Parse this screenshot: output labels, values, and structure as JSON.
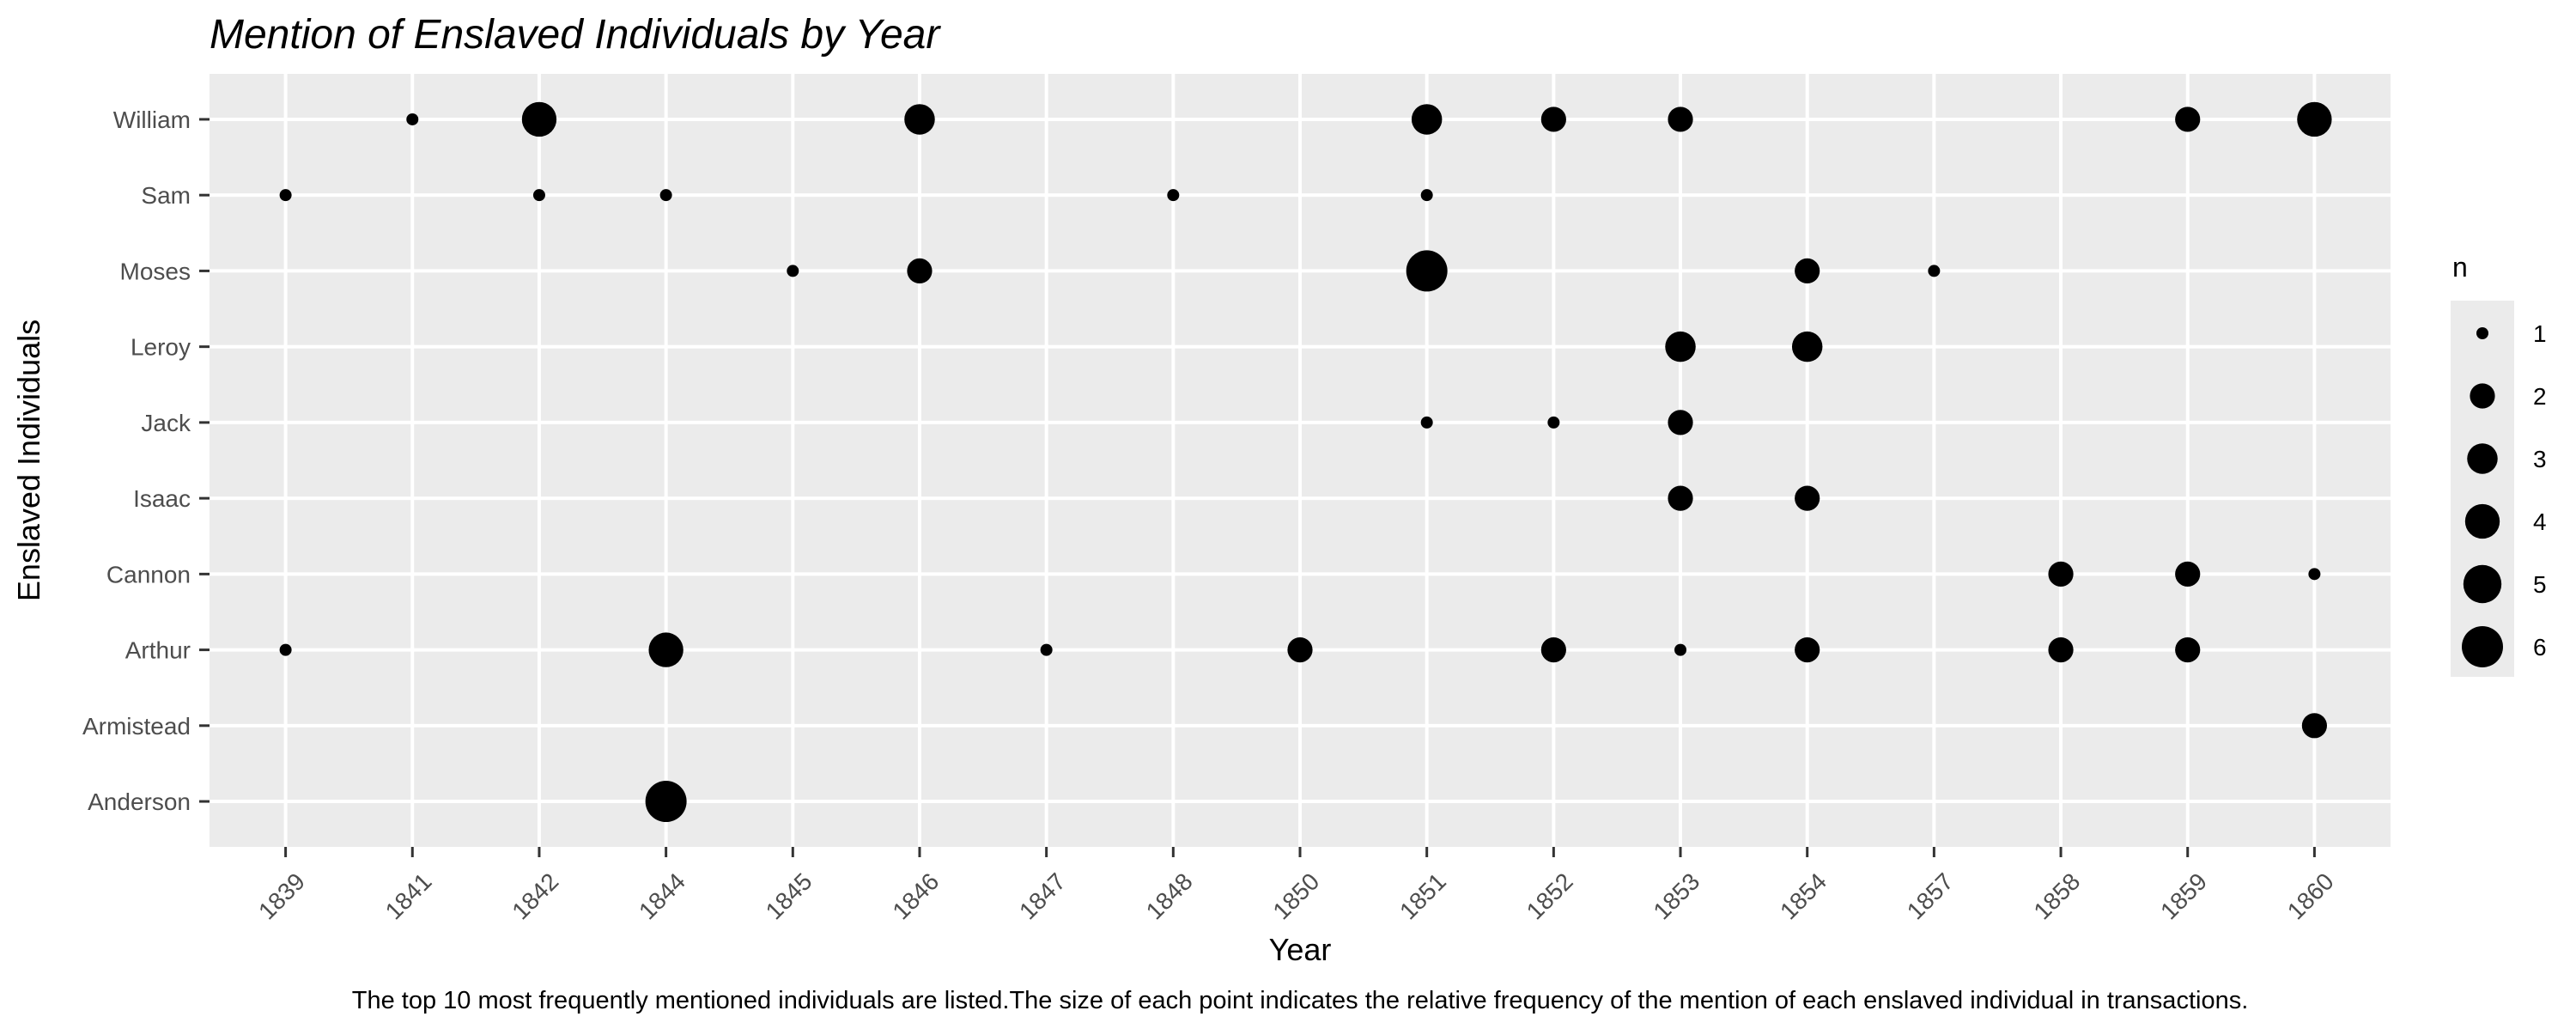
{
  "chart_data": {
    "type": "scatter",
    "title": "Mention of Enslaved Individuals by Year",
    "xlabel": "Year",
    "ylabel": "Enslaved Individuals",
    "caption": "The top 10 most frequently mentioned individuals are listed.The size of each point indicates the relative frequency of the mention of each enslaved individual in transactions.",
    "x_categories": [
      "1839",
      "1841",
      "1842",
      "1844",
      "1845",
      "1846",
      "1847",
      "1848",
      "1850",
      "1851",
      "1852",
      "1853",
      "1854",
      "1857",
      "1858",
      "1859",
      "1860"
    ],
    "y_categories": [
      "William",
      "Sam",
      "Moses",
      "Leroy",
      "Jack",
      "Isaac",
      "Cannon",
      "Arthur",
      "Armistead",
      "Anderson"
    ],
    "size_legend": {
      "title": "n",
      "values": [
        1,
        2,
        3,
        4,
        5,
        6
      ],
      "labels": [
        "1",
        "2",
        "3",
        "4",
        "5",
        "6"
      ]
    },
    "grid": true,
    "legend_position": "right",
    "points": [
      {
        "x": "1841",
        "y": "William",
        "n": 1
      },
      {
        "x": "1842",
        "y": "William",
        "n": 4
      },
      {
        "x": "1846",
        "y": "William",
        "n": 3
      },
      {
        "x": "1851",
        "y": "William",
        "n": 3
      },
      {
        "x": "1852",
        "y": "William",
        "n": 2
      },
      {
        "x": "1853",
        "y": "William",
        "n": 2
      },
      {
        "x": "1859",
        "y": "William",
        "n": 2
      },
      {
        "x": "1860",
        "y": "William",
        "n": 4
      },
      {
        "x": "1839",
        "y": "Sam",
        "n": 1
      },
      {
        "x": "1842",
        "y": "Sam",
        "n": 1
      },
      {
        "x": "1844",
        "y": "Sam",
        "n": 1
      },
      {
        "x": "1848",
        "y": "Sam",
        "n": 1
      },
      {
        "x": "1851",
        "y": "Sam",
        "n": 1
      },
      {
        "x": "1845",
        "y": "Moses",
        "n": 1
      },
      {
        "x": "1846",
        "y": "Moses",
        "n": 2
      },
      {
        "x": "1851",
        "y": "Moses",
        "n": 6
      },
      {
        "x": "1854",
        "y": "Moses",
        "n": 2
      },
      {
        "x": "1857",
        "y": "Moses",
        "n": 1
      },
      {
        "x": "1853",
        "y": "Leroy",
        "n": 3
      },
      {
        "x": "1854",
        "y": "Leroy",
        "n": 3
      },
      {
        "x": "1851",
        "y": "Jack",
        "n": 1
      },
      {
        "x": "1852",
        "y": "Jack",
        "n": 1
      },
      {
        "x": "1853",
        "y": "Jack",
        "n": 2
      },
      {
        "x": "1853",
        "y": "Isaac",
        "n": 2
      },
      {
        "x": "1854",
        "y": "Isaac",
        "n": 2
      },
      {
        "x": "1858",
        "y": "Cannon",
        "n": 2
      },
      {
        "x": "1859",
        "y": "Cannon",
        "n": 2
      },
      {
        "x": "1860",
        "y": "Cannon",
        "n": 1
      },
      {
        "x": "1839",
        "y": "Arthur",
        "n": 1
      },
      {
        "x": "1844",
        "y": "Arthur",
        "n": 4
      },
      {
        "x": "1847",
        "y": "Arthur",
        "n": 1
      },
      {
        "x": "1850",
        "y": "Arthur",
        "n": 2
      },
      {
        "x": "1852",
        "y": "Arthur",
        "n": 2
      },
      {
        "x": "1853",
        "y": "Arthur",
        "n": 1
      },
      {
        "x": "1854",
        "y": "Arthur",
        "n": 2
      },
      {
        "x": "1858",
        "y": "Arthur",
        "n": 2
      },
      {
        "x": "1859",
        "y": "Arthur",
        "n": 2
      },
      {
        "x": "1860",
        "y": "Armistead",
        "n": 2
      },
      {
        "x": "1844",
        "y": "Anderson",
        "n": 6
      }
    ],
    "colors": {
      "panel_background": "#ebebeb",
      "grid": "#ffffff",
      "point": "#000000",
      "tick_text": "#4d4d4d",
      "tick_mark": "#333333"
    }
  }
}
